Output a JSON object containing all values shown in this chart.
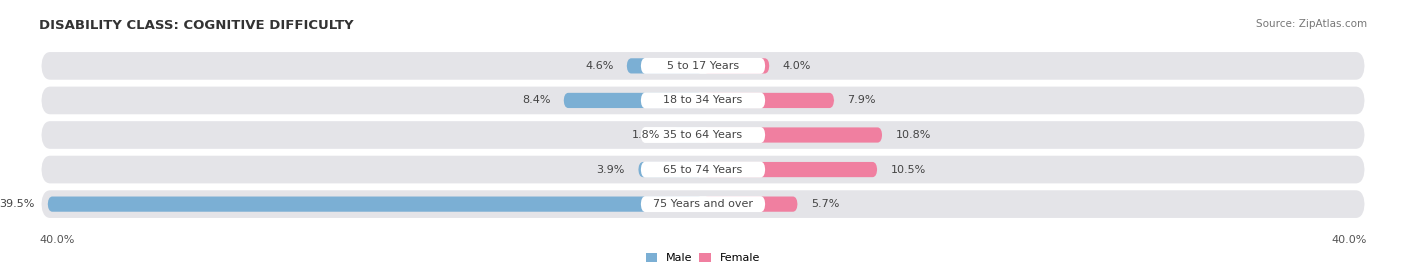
{
  "title": "DISABILITY CLASS: COGNITIVE DIFFICULTY",
  "source": "Source: ZipAtlas.com",
  "categories": [
    "5 to 17 Years",
    "18 to 34 Years",
    "35 to 64 Years",
    "65 to 74 Years",
    "75 Years and over"
  ],
  "male_values": [
    4.6,
    8.4,
    1.8,
    3.9,
    39.5
  ],
  "female_values": [
    4.0,
    7.9,
    10.8,
    10.5,
    5.7
  ],
  "male_color": "#7bafd4",
  "female_color": "#f07fa0",
  "row_bg_color": "#e4e4e8",
  "label_bg_color": "#ffffff",
  "max_val": 40.0,
  "axis_label_left": "40.0%",
  "axis_label_right": "40.0%",
  "title_fontsize": 9.5,
  "label_fontsize": 8.0,
  "value_fontsize": 8.0,
  "source_fontsize": 7.5
}
